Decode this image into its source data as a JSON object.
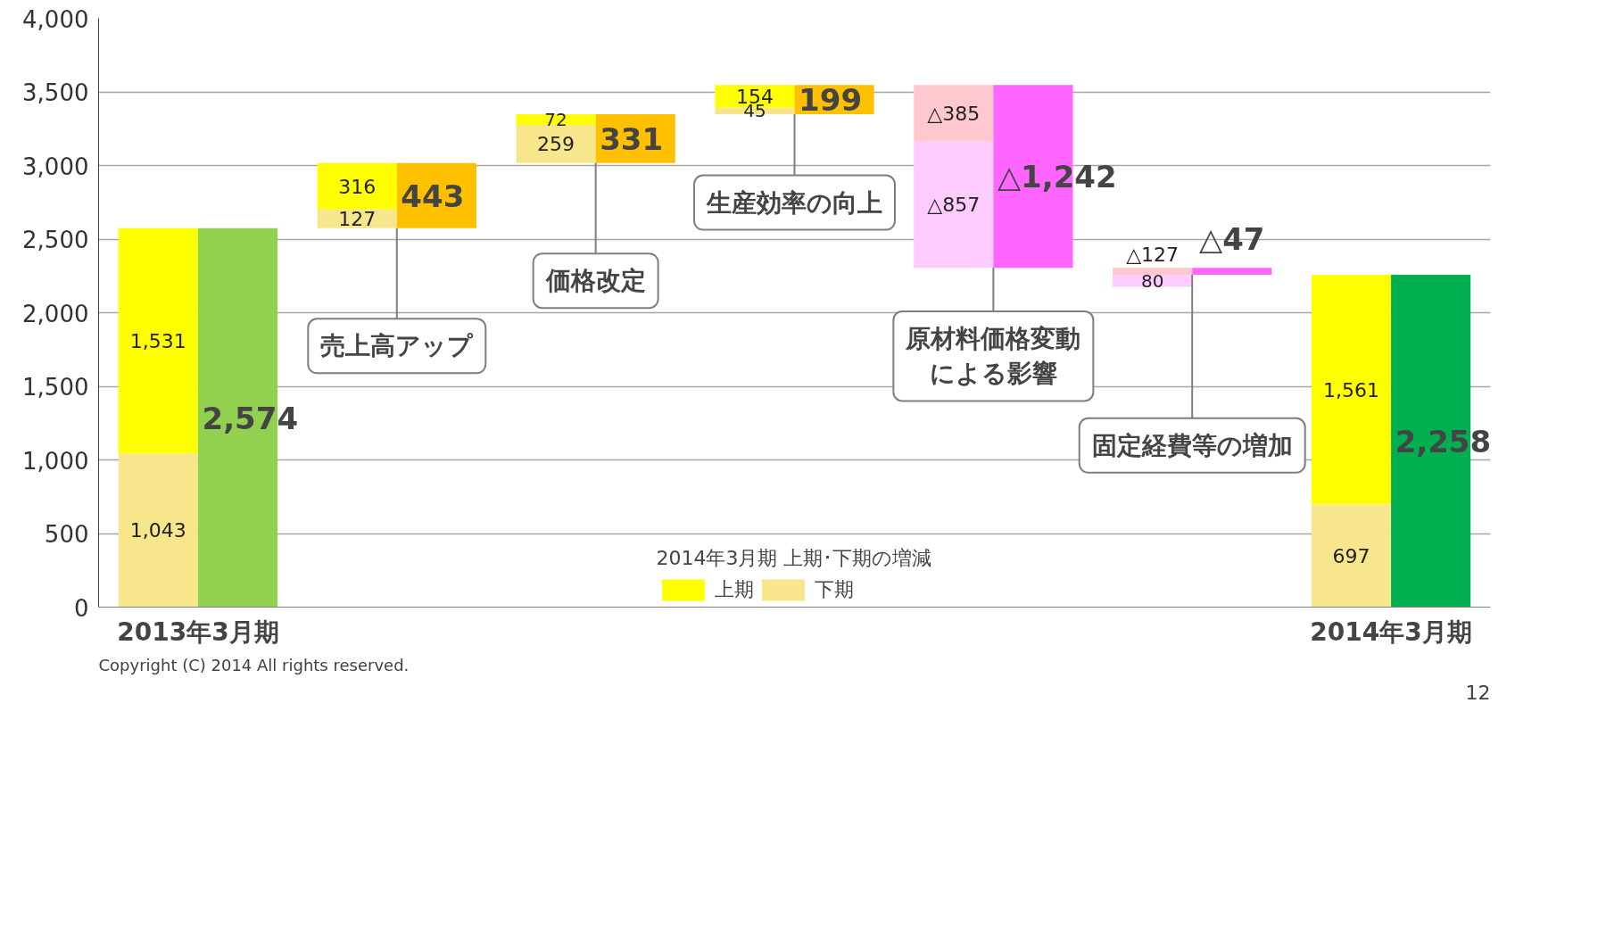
{
  "chart_data": {
    "type": "bar",
    "categories": [
      "2013年3月期",
      null,
      null,
      null,
      null,
      null,
      "2014年3月期"
    ],
    "series": [
      {
        "name": "上期",
        "colors": [
          "#ffff00",
          "#ffff00",
          "#ffff00",
          "#ffff00",
          "#ffc7ce",
          "#ffc7ce",
          "#ffff00"
        ],
        "base": [
          1043,
          2701,
          3276,
          3393,
          3547,
          2305,
          697
        ],
        "values": [
          1531,
          316,
          72,
          154,
          -385,
          -127,
          1561
        ],
        "value_labels": [
          "1,531",
          "316",
          "72",
          "154",
          "△385",
          "△127",
          "1,561"
        ]
      },
      {
        "name": "下期",
        "colors": [
          "#f8e68c",
          "#f8e68c",
          "#f8e68c",
          "#f8e68c",
          "#ffccff",
          "#ffccff",
          "#f8e68c"
        ],
        "base": [
          0,
          2574,
          3017,
          3348,
          3162,
          2178,
          0
        ],
        "values": [
          1043,
          127,
          259,
          45,
          -857,
          80,
          697
        ],
        "value_labels": [
          "1,043",
          "127",
          "259",
          "45",
          "△857",
          "80",
          "697"
        ]
      },
      {
        "colors": [
          "#92d050",
          "#ffc000",
          "#ffc000",
          "#ffc000",
          "#ff66ff",
          "#ff66ff",
          "#00b050"
        ],
        "base": [
          0,
          2574,
          3017,
          3348,
          3547,
          2305,
          0
        ],
        "values": [
          2574,
          443,
          331,
          199,
          -1242,
          -47,
          2258
        ],
        "value_labels": [
          "2,574",
          "443",
          "331",
          "199",
          "△1,242",
          "△47",
          "2,258"
        ]
      }
    ],
    "ylim": [
      0,
      4000
    ],
    "yticks": [
      {
        "value": 0,
        "label": "0"
      },
      {
        "value": 500,
        "label": "500"
      },
      {
        "value": 1000,
        "label": "1,000"
      },
      {
        "value": 1500,
        "label": "1,500"
      },
      {
        "value": 2000,
        "label": "2,000"
      },
      {
        "value": 2500,
        "label": "2,500"
      },
      {
        "value": 3000,
        "label": "3,000"
      },
      {
        "value": 3500,
        "label": "3,500"
      },
      {
        "value": 4000,
        "label": "4,000"
      }
    ],
    "grid": "y",
    "legend": "bottom",
    "legend_title": "2014年3月期 上期･下期の増減",
    "annotations": [
      {
        "text": "売上高アップ",
        "y": 2574
      },
      {
        "text": "価格改定",
        "y": 3017
      },
      {
        "text": "生産効率の向上",
        "y": 3348
      },
      {
        "text": "原材料価格変動による影響",
        "y": 2305
      },
      {
        "text": "固定経費等の増加",
        "y": 2258
      },
      "Copyright (C) 2014 All rights reserved.",
      "12"
    ]
  }
}
